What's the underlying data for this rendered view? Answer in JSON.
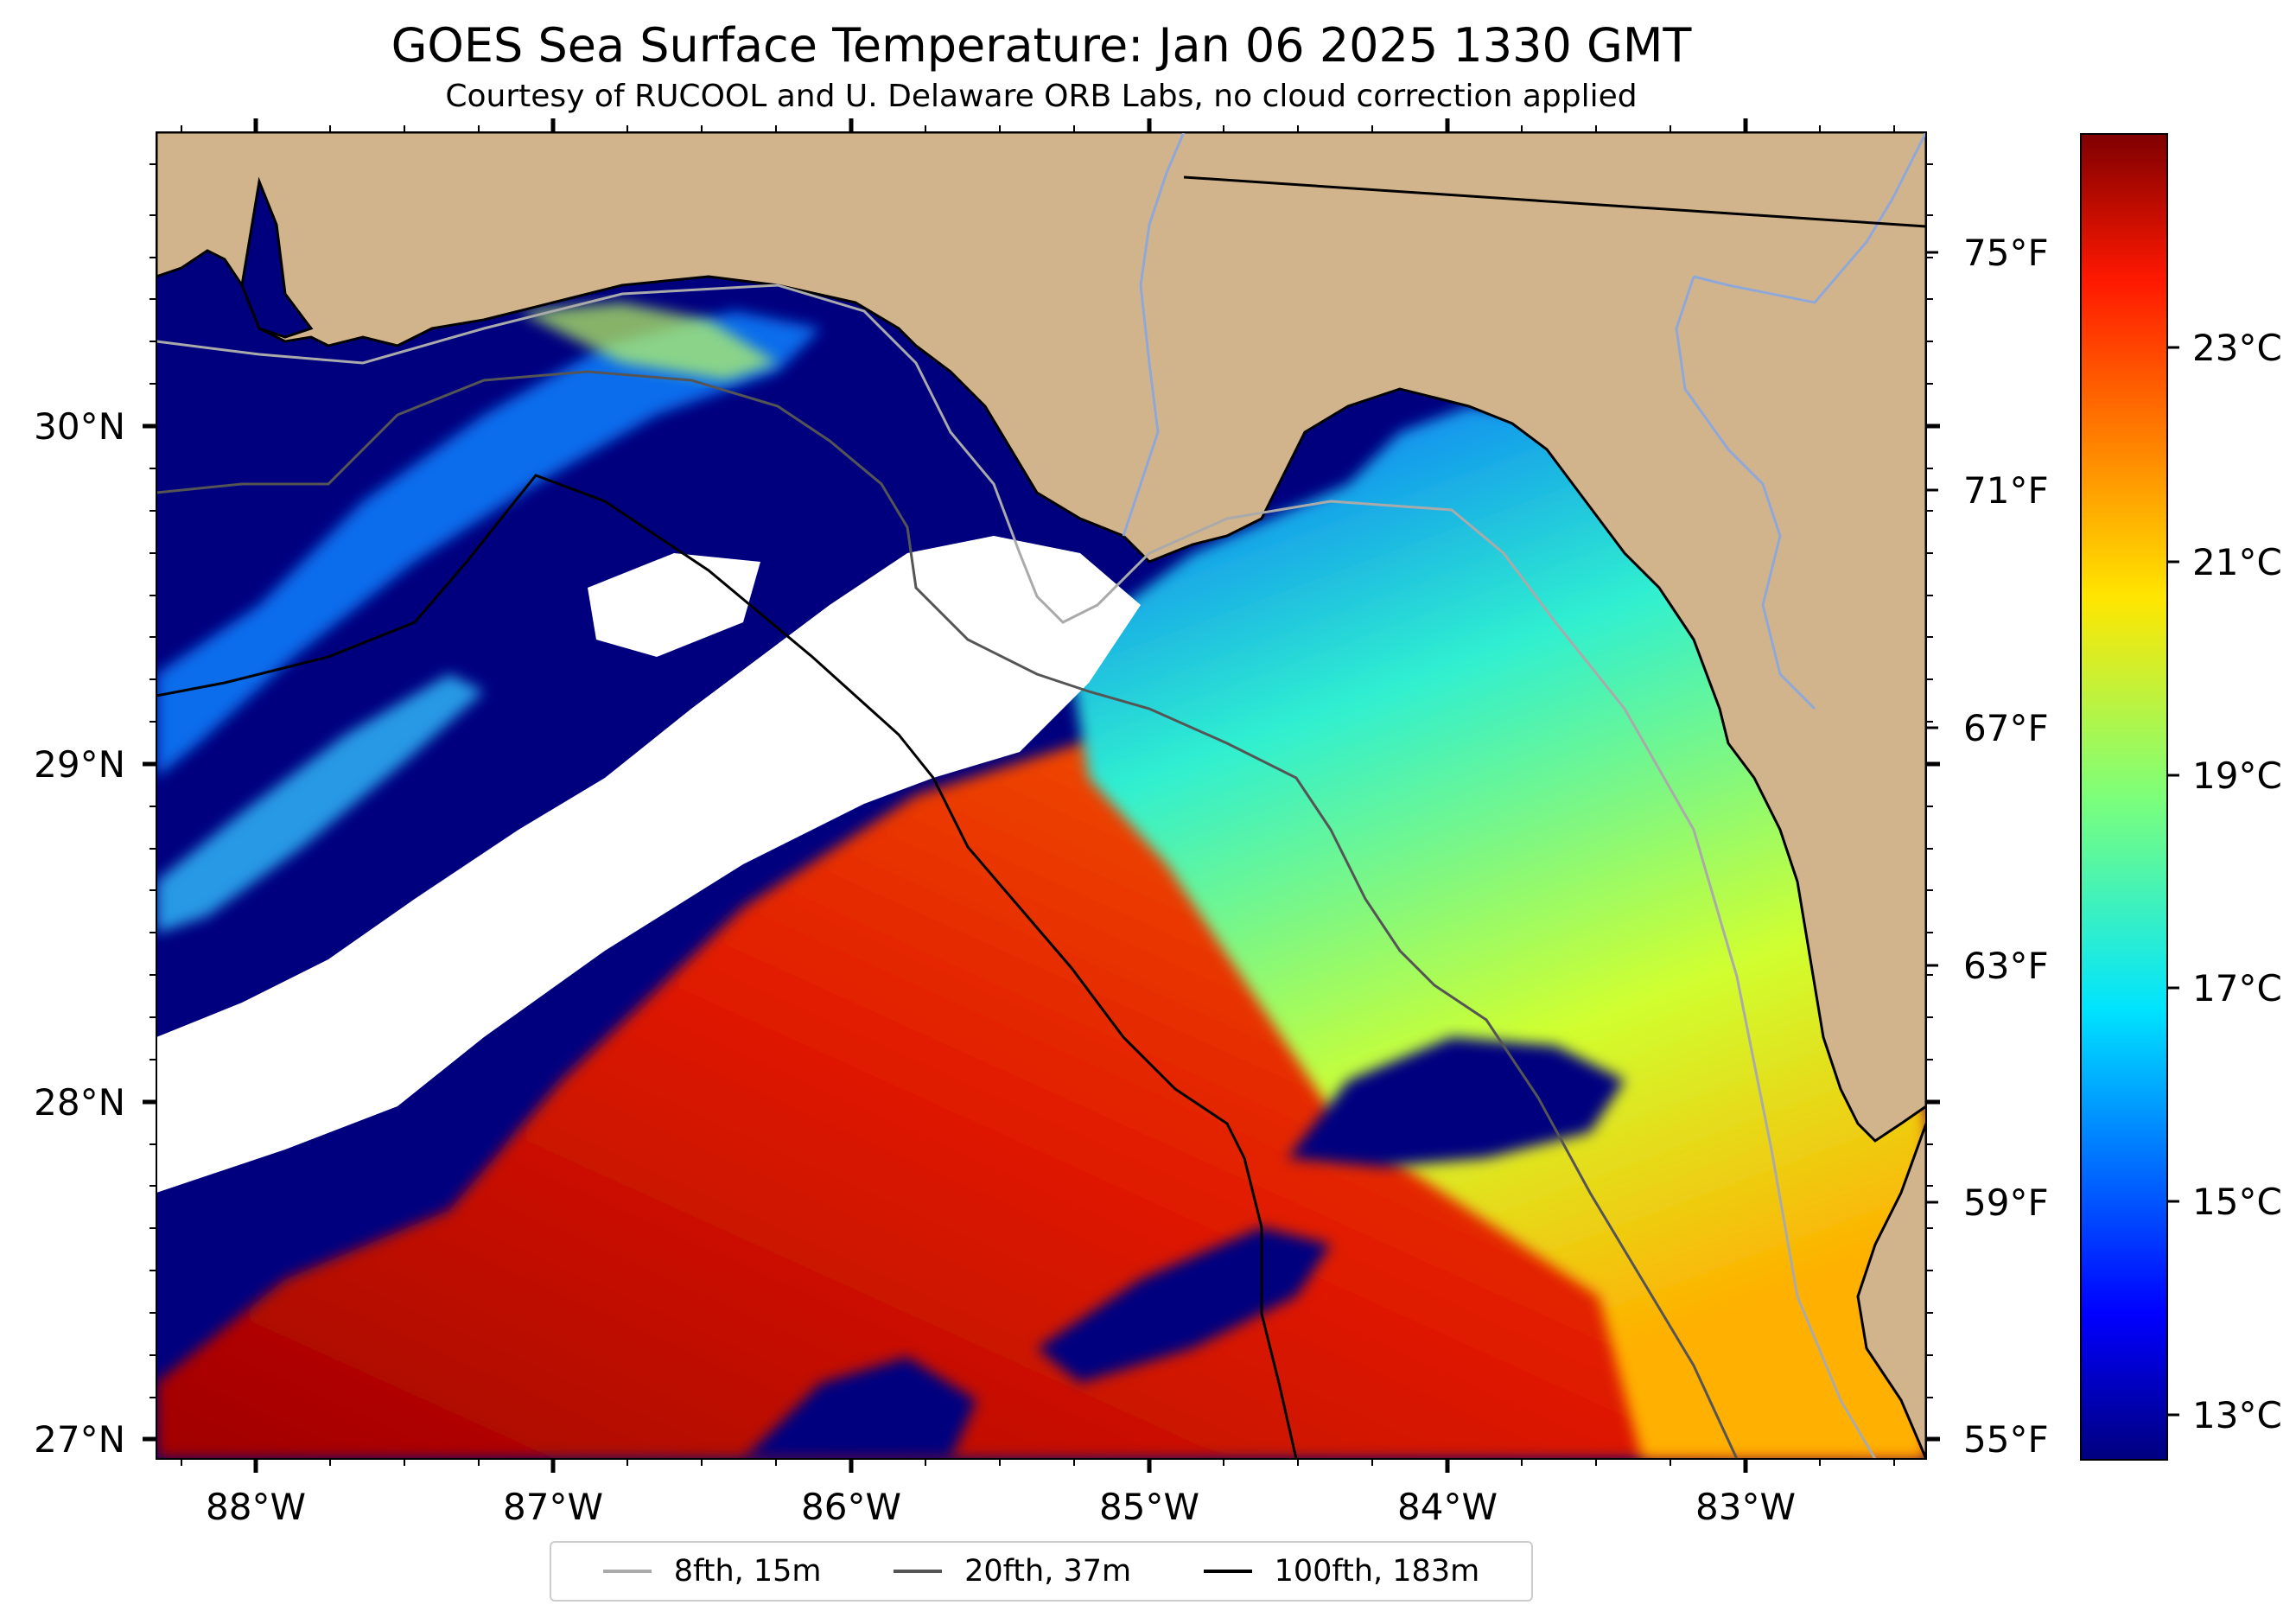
{
  "title": "GOES Sea Surface Temperature: Jan 06 2025 1330 GMT",
  "subtitle": "Courtesy of RUCOOL and U. Delaware ORB Labs, no cloud correction applied",
  "map": {
    "lon_labels": [
      "88°W",
      "87°W",
      "86°W",
      "85°W",
      "84°W",
      "83°W"
    ],
    "lat_labels": [
      "30°N",
      "29°N",
      "28°N",
      "27°N"
    ],
    "fahrenheit_labels": [
      "75°F",
      "71°F",
      "67°F",
      "63°F",
      "59°F",
      "55°F"
    ]
  },
  "colorbar": {
    "labels": [
      "23°C",
      "21°C",
      "19°C",
      "17°C",
      "15°C",
      "13°C"
    ],
    "colormap": "jet",
    "range_c": [
      12.7,
      25.0
    ]
  },
  "legend": [
    {
      "label": "8fth, 15m",
      "color": "#aaaaaa"
    },
    {
      "label": "20fth, 37m",
      "color": "#555555"
    },
    {
      "label": "100fth, 183m",
      "color": "#000000"
    }
  ],
  "colors": {
    "land": "#D2B48C",
    "cloud": "#ffffff",
    "cold": "#00007f",
    "warm": "#d71400"
  }
}
